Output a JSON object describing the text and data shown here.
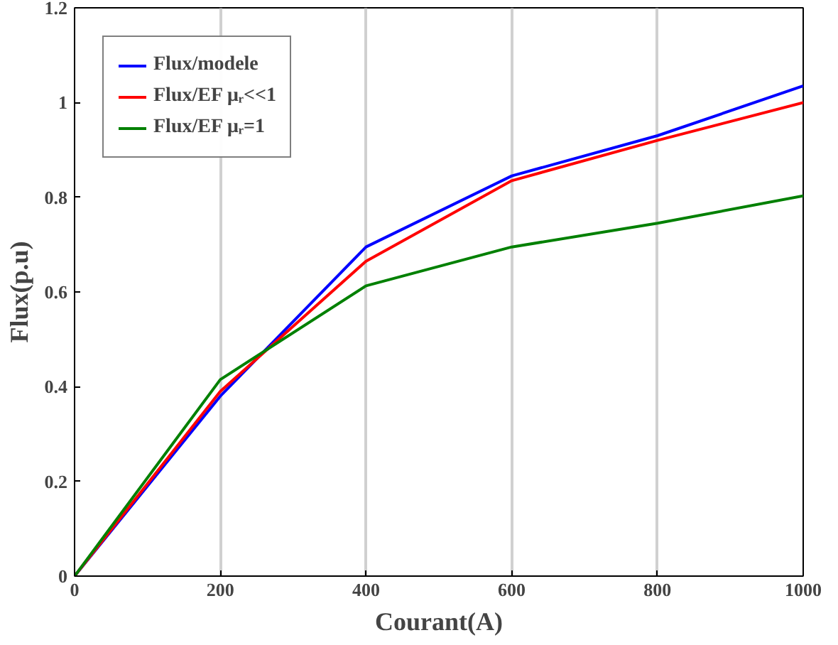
{
  "chart_data": {
    "type": "line",
    "xlabel": "Courant(A)",
    "ylabel": "Flux(p.u)",
    "x": [
      0,
      200,
      400,
      600,
      800,
      1000
    ],
    "series": [
      {
        "name": "Flux/modele",
        "color": "#0000ff",
        "values": [
          0,
          0.38,
          0.695,
          0.845,
          0.93,
          1.035
        ]
      },
      {
        "name": "Flux/EF μᵣ<<1",
        "color": "#ff0000",
        "values": [
          0,
          0.39,
          0.665,
          0.835,
          0.92,
          1.0
        ]
      },
      {
        "name": "Flux/EF μᵣ=1",
        "color": "#008000",
        "values": [
          0,
          0.415,
          0.613,
          0.695,
          0.745,
          0.803
        ]
      }
    ],
    "xlim": [
      0,
      1000
    ],
    "ylim": [
      0,
      1.2
    ],
    "xticks": [
      0,
      200,
      400,
      600,
      800,
      1000
    ],
    "yticks": [
      0,
      0.2,
      0.4,
      0.6,
      0.8,
      1,
      1.2
    ],
    "grid": "x",
    "legend": "top left",
    "marker": "none",
    "line_style": "solid"
  }
}
